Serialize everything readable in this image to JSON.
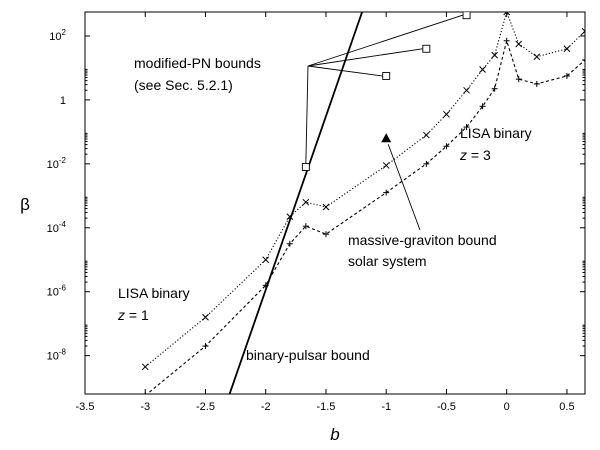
{
  "chart_data": {
    "type": "line",
    "title": "",
    "xlabel": "b",
    "ylabel": "β",
    "xlim": [
      -3.5,
      0.65
    ],
    "ylim_log10": [
      -9.2,
      2.75
    ],
    "x_ticks": [
      "-3.5",
      "-3",
      "-2.5",
      "-2",
      "-1.5",
      "-1",
      "-0.5",
      "0",
      "0.5"
    ],
    "x_tick_values": [
      -3.5,
      -3,
      -2.5,
      -2,
      -1.5,
      -1,
      -0.5,
      0,
      0.5
    ],
    "y_ticks": [
      {
        "exp": -8,
        "label": "10",
        "sup": "-8"
      },
      {
        "exp": -6,
        "label": "10",
        "sup": "-6"
      },
      {
        "exp": -4,
        "label": "10",
        "sup": "-4"
      },
      {
        "exp": -2,
        "label": "10",
        "sup": "-2"
      },
      {
        "exp": 0,
        "label": "1",
        "sup": ""
      },
      {
        "exp": 2,
        "label": "10",
        "sup": "2"
      }
    ],
    "series": [
      {
        "name": "LISA binary z = 1",
        "marker": "x",
        "dash": "dotted",
        "x": [
          -3,
          -2.5,
          -2,
          -1.8,
          -1.667,
          -1.5,
          -1,
          -0.667,
          -0.5,
          -0.333,
          -0.2,
          -0.1,
          0,
          0.1,
          0.25,
          0.5,
          0.65
        ],
        "log10_y": [
          -8.35,
          -6.8,
          -5.0,
          -3.65,
          -3.2,
          -3.35,
          -2.05,
          -1.1,
          -0.45,
          0.3,
          0.95,
          1.4,
          2.75,
          1.75,
          1.35,
          1.6,
          2.15
        ]
      },
      {
        "name": "LISA binary z = 3",
        "marker": "+",
        "dash": "dashed",
        "x": [
          -3,
          -2.5,
          -2,
          -1.8,
          -1.667,
          -1.5,
          -1,
          -0.667,
          -0.5,
          -0.333,
          -0.2,
          -0.1,
          0,
          0.1,
          0.25,
          0.5,
          0.65
        ],
        "log10_y": [
          -9.25,
          -7.7,
          -5.8,
          -4.5,
          -3.95,
          -4.2,
          -2.9,
          -2.0,
          -1.45,
          -0.85,
          -0.2,
          0.35,
          1.85,
          0.65,
          0.5,
          0.75,
          1.25
        ]
      },
      {
        "name": "binary-pulsar bound",
        "marker": "none",
        "dash": "solid",
        "x": [
          -2.3,
          -1.2
        ],
        "log10_y": [
          -9.2,
          2.75
        ]
      },
      {
        "name": "modified-PN bounds",
        "marker": "square-open",
        "x": [
          -1.667,
          -1,
          -0.667,
          -0.333
        ],
        "log10_y": [
          -2.1,
          0.75,
          1.6,
          2.65
        ]
      },
      {
        "name": "massive-graviton bound solar system",
        "marker": "triangle-filled",
        "x": [
          -1
        ],
        "log10_y": [
          -1.2
        ]
      }
    ],
    "annotations": {
      "modified_pn_line1": "modified-PN bounds",
      "modified_pn_line2": "(see Sec. 5.2.1)",
      "lisa_z3_line1": "LISA binary",
      "lisa_z3_z": "z",
      "lisa_z3_eq": " = 3",
      "lisa_z1_line1": "LISA binary",
      "lisa_z1_z": "z",
      "lisa_z1_eq": " = 1",
      "massive_line1": "massive-graviton bound",
      "massive_line2": "solar system",
      "pulsar": "binary-pulsar bound"
    }
  }
}
